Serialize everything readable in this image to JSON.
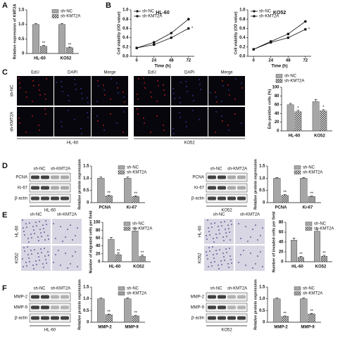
{
  "chart_data": [
    {
      "type": "bar",
      "ylabel": "Relative expression of KMT2A",
      "categories": [
        "HL-60",
        "KO52"
      ],
      "ylim": [
        0,
        1.5
      ],
      "yticks": [
        0,
        0.5,
        {
          "value": 1,
          "label": "1.0"
        },
        1.5
      ],
      "legend": "upper right",
      "grid": false,
      "series": [
        {
          "name": "sh-NC",
          "color": "#a6a6a6",
          "values": [
            1.0,
            1.0
          ],
          "errors": [
            0.03,
            0.03
          ]
        },
        {
          "name": "sh-KMT2A",
          "color": "#333333",
          "pattern": "checker",
          "values": [
            0.25,
            0.2
          ],
          "errors": [
            0.03,
            0.02
          ],
          "marks": [
            "**",
            "**"
          ]
        }
      ]
    },
    {
      "type": "line",
      "title": "HL-60",
      "xlabel": "Time (h)",
      "ylabel": "Cell viability (OD value)",
      "x": [
        0,
        24,
        48,
        72
      ],
      "xlim": [
        -8,
        80
      ],
      "xticks": [
        0,
        24,
        48,
        72
      ],
      "ylim": [
        0,
        1
      ],
      "yticks": [
        {
          "value": 0,
          "label": "0.0"
        },
        0.2,
        0.4,
        0.6,
        0.8,
        {
          "value": 1,
          "label": "1.0"
        }
      ],
      "legend": "upper left",
      "grid": false,
      "series": [
        {
          "name": "sh-NC",
          "color": "#111111",
          "marker": "circle",
          "values": [
            0.18,
            0.3,
            0.5,
            0.8
          ]
        },
        {
          "name": "sh-KMT2A",
          "color": "#111111",
          "marker": "square",
          "values": [
            0.18,
            0.25,
            0.4,
            0.6
          ],
          "marks": [
            null,
            null,
            null,
            "*"
          ]
        }
      ]
    },
    {
      "type": "line",
      "title": "KO52",
      "xlabel": "Time (h)",
      "ylabel": "Cell viability (OD value)",
      "x": [
        0,
        24,
        48,
        72
      ],
      "xlim": [
        -8,
        80
      ],
      "xticks": [
        0,
        24,
        48,
        72
      ],
      "ylim": [
        0,
        1
      ],
      "yticks": [
        {
          "value": 0,
          "label": "0.0"
        },
        0.2,
        0.4,
        0.6,
        0.8,
        {
          "value": 1,
          "label": "1.0"
        }
      ],
      "legend": "upper left",
      "grid": false,
      "series": [
        {
          "name": "sh-NC",
          "color": "#111111",
          "marker": "circle",
          "values": [
            0.15,
            0.32,
            0.48,
            0.75
          ]
        },
        {
          "name": "sh-KMT2A",
          "color": "#111111",
          "marker": "square",
          "values": [
            0.15,
            0.3,
            0.4,
            0.58
          ],
          "marks": [
            null,
            null,
            null,
            "*"
          ]
        }
      ]
    },
    {
      "type": "bar",
      "ylabel": "Edu positive cells (%)",
      "categories": [
        "HL-60",
        "KO52"
      ],
      "ylim": [
        0,
        100
      ],
      "yticks": [
        0,
        20,
        40,
        60,
        80,
        100
      ],
      "legend": "top",
      "grid": false,
      "series": [
        {
          "name": "sh-NC",
          "color": "#a6a6a6",
          "values": [
            60,
            67
          ],
          "errors": [
            3,
            5
          ]
        },
        {
          "name": "sh-KMT2A",
          "color": "#333333",
          "pattern": "checker",
          "values": [
            44,
            46
          ],
          "errors": [
            3,
            3
          ],
          "marks": [
            "*",
            "*"
          ]
        }
      ]
    },
    {
      "type": "bar",
      "ylabel": "Relative protein expression",
      "categories": [
        "PCNA",
        "Ki-67"
      ],
      "ylim": [
        0,
        1.5
      ],
      "yticks": [
        0,
        0.5,
        {
          "value": 1,
          "label": "1.0"
        },
        1.5
      ],
      "legend": "upper right",
      "grid": false,
      "series": [
        {
          "name": "sh-NC",
          "color": "#a6a6a6",
          "values": [
            1.0,
            1.0
          ],
          "errors": [
            0.05,
            0.06
          ]
        },
        {
          "name": "sh-KMT2A",
          "color": "#333333",
          "pattern": "checker",
          "values": [
            0.28,
            0.25
          ],
          "errors": [
            0.03,
            0.03
          ],
          "marks": [
            "**",
            "**"
          ]
        }
      ]
    },
    {
      "type": "bar",
      "ylabel": "Relative protein expression",
      "categories": [
        "PCNA",
        "Ki-67"
      ],
      "ylim": [
        0,
        1.5
      ],
      "yticks": [
        0,
        0.5,
        {
          "value": 1,
          "label": "1.0"
        },
        1.5
      ],
      "legend": "upper right",
      "grid": false,
      "series": [
        {
          "name": "sh-NC",
          "color": "#a6a6a6",
          "values": [
            1.0,
            1.0
          ],
          "errors": [
            0.03,
            0.03
          ]
        },
        {
          "name": "sh-KMT2A",
          "color": "#333333",
          "pattern": "checker",
          "values": [
            0.3,
            0.25
          ],
          "errors": [
            0.03,
            0.02
          ],
          "marks": [
            "**",
            "**"
          ]
        }
      ]
    },
    {
      "type": "bar",
      "ylabel": "Number of migrated cells per field",
      "categories": [
        "HL-60",
        "KO52"
      ],
      "ylim": [
        0,
        100
      ],
      "yticks": [
        0,
        20,
        40,
        60,
        80,
        100
      ],
      "legend": "upper right",
      "grid": false,
      "series": [
        {
          "name": "sh-NC",
          "color": "#a6a6a6",
          "values": [
            57,
            78
          ],
          "errors": [
            5,
            6
          ]
        },
        {
          "name": "sh-KMT2A",
          "color": "#333333",
          "pattern": "checker",
          "values": [
            18,
            14
          ],
          "errors": [
            4,
            3
          ],
          "marks": [
            "**",
            "**"
          ]
        }
      ]
    },
    {
      "type": "bar",
      "ylabel": "Number of invaded cells per field",
      "categories": [
        "HL-60",
        "KO52"
      ],
      "ylim": [
        0,
        80
      ],
      "yticks": [
        0,
        20,
        40,
        60,
        80
      ],
      "legend": "upper right",
      "grid": false,
      "series": [
        {
          "name": "sh-NC",
          "color": "#a6a6a6",
          "values": [
            44,
            62
          ],
          "errors": [
            4,
            4
          ]
        },
        {
          "name": "sh-KMT2A",
          "color": "#333333",
          "pattern": "checker",
          "values": [
            9,
            11
          ],
          "errors": [
            2,
            2
          ],
          "marks": [
            "**",
            "**"
          ]
        }
      ]
    },
    {
      "type": "bar",
      "ylabel": "Relative protein expression",
      "categories": [
        "MMP-2",
        "MMP-9"
      ],
      "ylim": [
        0,
        1.5
      ],
      "yticks": [
        0,
        0.5,
        {
          "value": 1,
          "label": "1.0"
        },
        1.5
      ],
      "legend": "upper right",
      "grid": false,
      "series": [
        {
          "name": "sh-NC",
          "color": "#a6a6a6",
          "values": [
            1.0,
            1.0
          ],
          "errors": [
            0.03,
            0.04
          ]
        },
        {
          "name": "sh-KMT2A",
          "color": "#333333",
          "pattern": "checker",
          "values": [
            0.32,
            0.27
          ],
          "errors": [
            0.03,
            0.03
          ],
          "marks": [
            "**",
            "**"
          ]
        }
      ]
    },
    {
      "type": "bar",
      "ylabel": "Relative protein expression",
      "categories": [
        "MMP-2",
        "MMP-9"
      ],
      "ylim": [
        0,
        1.5
      ],
      "yticks": [
        0,
        0.5,
        {
          "value": 1,
          "label": "1.0"
        },
        1.5
      ],
      "legend": "upper right",
      "grid": false,
      "series": [
        {
          "name": "sh-NC",
          "color": "#a6a6a6",
          "values": [
            1.0,
            1.0
          ],
          "errors": [
            0.03,
            0.03
          ]
        },
        {
          "name": "sh-KMT2A",
          "color": "#333333",
          "pattern": "checker",
          "values": [
            0.25,
            0.35
          ],
          "errors": [
            0.02,
            0.03
          ],
          "marks": [
            "**",
            "**"
          ]
        }
      ]
    }
  ],
  "figure": {
    "panel_labels": [
      "A",
      "B",
      "C",
      "D",
      "E",
      "F"
    ],
    "c": {
      "rows": [
        "sh-NC",
        "sh-KMT2A"
      ],
      "groups": [
        {
          "name": "HL-60",
          "columns": [
            "EdU",
            "DAPI",
            "Merge"
          ]
        },
        {
          "name": "KO52",
          "columns": [
            "EdU",
            "DAPI",
            "Merge"
          ]
        }
      ]
    },
    "d": [
      {
        "columns": [
          "sh-NC",
          "sh-KMT2A"
        ],
        "rows": [
          "PCNA",
          "Ki-67",
          "β-actin"
        ],
        "group": "HL-60"
      },
      {
        "columns": [
          "sh-NC",
          "sh-KMT2A"
        ],
        "rows": [
          "PCNA",
          "Ki-67",
          "β-actin"
        ],
        "group": "KO52"
      }
    ],
    "e": [
      {
        "columns": [
          "sh-NC",
          "sh-KMT2A"
        ],
        "rows": [
          "HL-60",
          "KO52"
        ]
      },
      {
        "columns": [
          "sh-NC",
          "sh-KMT2A"
        ],
        "rows": [
          "HL-60",
          "KO52"
        ]
      }
    ],
    "f": [
      {
        "columns": [
          "sh-NC",
          "sh-KMT2A"
        ],
        "rows": [
          "MMP-2",
          "MMP-9",
          "β-actin"
        ],
        "group": "HL-60"
      },
      {
        "columns": [
          "sh-NC",
          "sh-KMT2A"
        ],
        "rows": [
          "MMP-2",
          "MMP-9",
          "β-actin"
        ],
        "group": "KO52"
      }
    ]
  }
}
